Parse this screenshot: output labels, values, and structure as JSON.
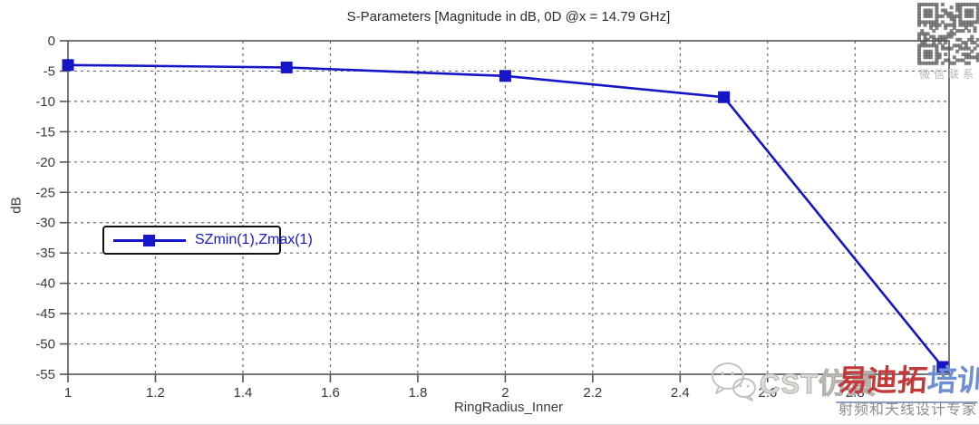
{
  "title": "S-Parameters [Magnitude in dB, 0D @x = 14.79 GHz]",
  "chart_data": {
    "type": "line",
    "title": "S-Parameters [Magnitude in dB, 0D @x = 14.79 GHz]",
    "xlabel": "RingRadius_Inner",
    "ylabel": "dB",
    "xlim": [
      1,
      3.015
    ],
    "ylim": [
      -55,
      0
    ],
    "x_ticks": [
      1,
      1.2,
      1.4,
      1.6,
      1.8,
      2,
      2.2,
      2.4,
      2.6,
      2.8
    ],
    "y_ticks": [
      0,
      -5,
      -10,
      -15,
      -20,
      -25,
      -30,
      -35,
      -40,
      -45,
      -50,
      -55
    ],
    "grid": true,
    "grid_style": "dashed",
    "legend_position": "left-middle",
    "series": [
      {
        "name": "SZmin(1),Zmax(1)",
        "color": "#1616c8",
        "marker": "square",
        "x": [
          1,
          1.5,
          2,
          2.5,
          3
        ],
        "y": [
          -4.0,
          -4.4,
          -5.8,
          -9.3,
          -53.8
        ]
      }
    ]
  },
  "watermarks": {
    "qr_caption": "微信联系",
    "cst_text": "CST仿真",
    "logo_red": "易迪拓",
    "logo_blue": "培训",
    "logo_subtitle": "射频和天线设计专家"
  },
  "colors": {
    "curve": "#1616c8",
    "grid": "#6b6b6b",
    "axis": "#555555",
    "tick_text": "#3a3a3a",
    "title_text": "#2b2b2b",
    "logo_red": "#c43a3a",
    "logo_blue": "#6f8fd2"
  }
}
